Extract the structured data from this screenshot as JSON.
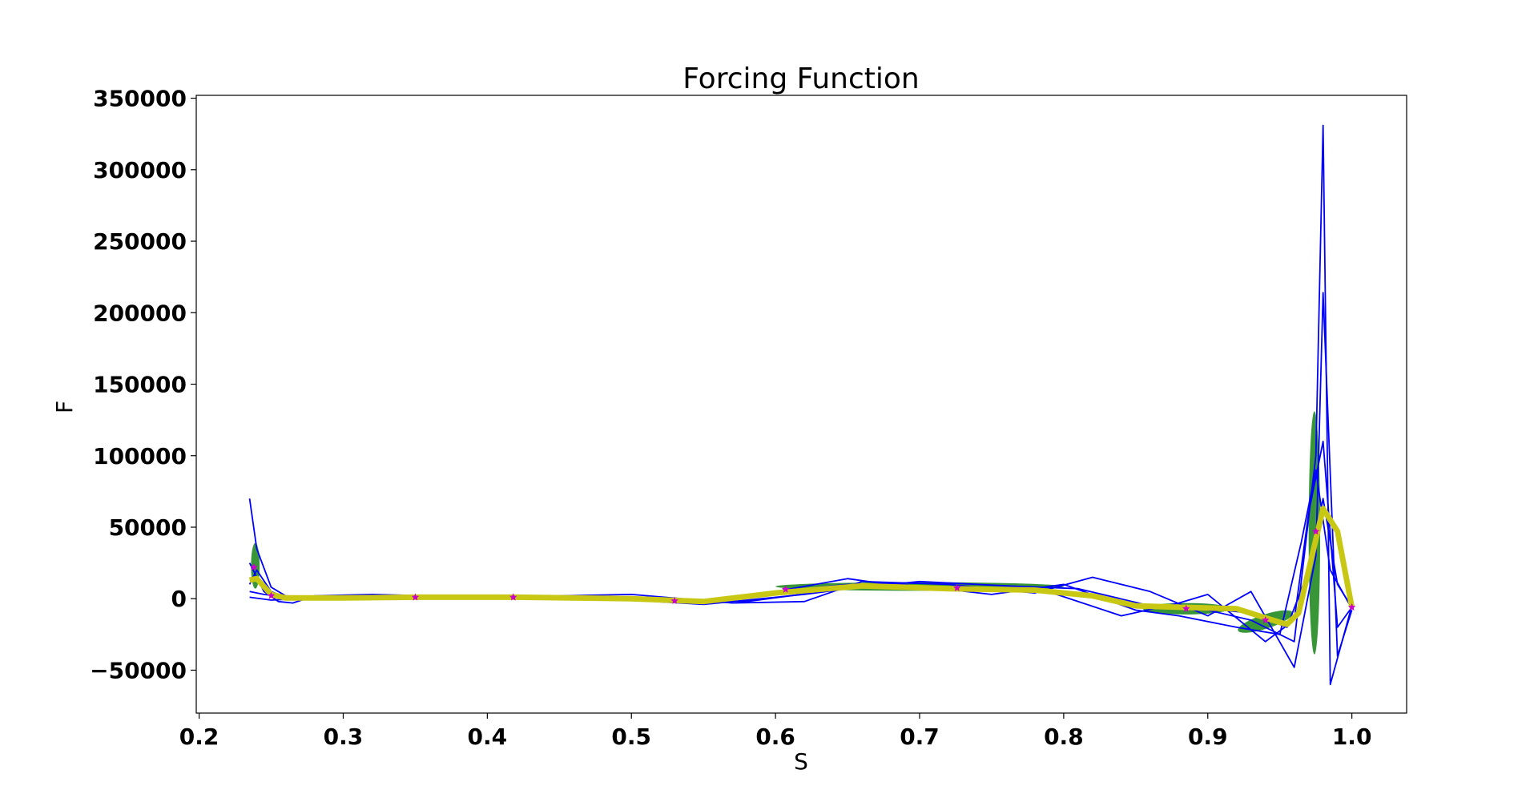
{
  "chart_data": {
    "type": "line",
    "title": "Forcing Function",
    "xlabel": "S",
    "ylabel": "F",
    "xlim": [
      0.198,
      1.038
    ],
    "ylim": [
      -80000,
      352000
    ],
    "xticks": [
      0.2,
      0.3,
      0.4,
      0.5,
      0.6,
      0.7,
      0.8,
      0.9,
      1.0
    ],
    "xtick_labels": [
      "0.2",
      "0.3",
      "0.4",
      "0.5",
      "0.6",
      "0.7",
      "0.8",
      "0.9",
      "1.0"
    ],
    "yticks": [
      -50000,
      0,
      50000,
      100000,
      150000,
      200000,
      250000,
      300000,
      350000
    ],
    "ytick_labels": [
      "−50000",
      "0",
      "50000",
      "100000",
      "150000",
      "200000",
      "250000",
      "300000",
      "350000"
    ],
    "grid": false,
    "colors": {
      "trajectories": "#0000ff",
      "mean": "#c8c814",
      "points": "#cc00cc",
      "ellipses": "#228b22"
    },
    "series": [
      {
        "style": "trajectory",
        "x": [
          0.235,
          0.24,
          0.25,
          0.26,
          0.28,
          0.32,
          0.4,
          0.5,
          0.55,
          0.6,
          0.65,
          0.7,
          0.75,
          0.8,
          0.85,
          0.9,
          0.93,
          0.96,
          0.975,
          0.98,
          0.985,
          1.0
        ],
        "y": [
          70000,
          35000,
          8000,
          2000,
          1000,
          800,
          500,
          0,
          -2000,
          5000,
          10000,
          8000,
          6000,
          5000,
          -5000,
          -8000,
          -15000,
          -30000,
          100000,
          331000,
          -60000,
          -5000
        ]
      },
      {
        "style": "trajectory",
        "x": [
          0.235,
          0.245,
          0.255,
          0.265,
          0.28,
          0.32,
          0.4,
          0.5,
          0.57,
          0.62,
          0.66,
          0.72,
          0.78,
          0.82,
          0.86,
          0.9,
          0.93,
          0.96,
          0.975,
          0.98,
          0.99,
          1.0
        ],
        "y": [
          25000,
          5000,
          -2000,
          -3000,
          2000,
          3000,
          1000,
          3000,
          -3000,
          -2000,
          12000,
          10000,
          4000,
          15000,
          5000,
          -12000,
          5000,
          -48000,
          30000,
          214000,
          -40000,
          -8000
        ]
      },
      {
        "style": "trajectory",
        "x": [
          0.235,
          0.24,
          0.25,
          0.26,
          0.27,
          0.3,
          0.35,
          0.45,
          0.55,
          0.6,
          0.65,
          0.7,
          0.78,
          0.84,
          0.88,
          0.9,
          0.94,
          0.96,
          0.97,
          0.98,
          0.99,
          1.0
        ],
        "y": [
          10000,
          20000,
          5000,
          1000,
          500,
          1500,
          1000,
          500,
          -3000,
          5000,
          14000,
          7000,
          8000,
          -12000,
          -3000,
          3000,
          -30000,
          -15000,
          60000,
          110000,
          -20000,
          -6000
        ]
      },
      {
        "style": "trajectory",
        "x": [
          0.235,
          0.245,
          0.26,
          0.3,
          0.4,
          0.5,
          0.55,
          0.62,
          0.68,
          0.75,
          0.8,
          0.85,
          0.88,
          0.92,
          0.95,
          0.965,
          0.975,
          0.985,
          1.0
        ],
        "y": [
          5000,
          3000,
          1000,
          800,
          600,
          -1000,
          -4000,
          3000,
          11000,
          3000,
          10000,
          -8000,
          -12000,
          -20000,
          -25000,
          40000,
          90000,
          20000,
          -7000
        ]
      },
      {
        "style": "trajectory",
        "x": [
          0.235,
          0.25,
          0.28,
          0.35,
          0.45,
          0.52,
          0.58,
          0.64,
          0.7,
          0.76,
          0.81,
          0.86,
          0.9,
          0.93,
          0.955,
          0.97,
          0.98,
          0.99,
          1.0
        ],
        "y": [
          1000,
          -1000,
          500,
          1000,
          1500,
          -500,
          -2000,
          6000,
          12000,
          9000,
          7000,
          -5000,
          -7000,
          -10000,
          -20000,
          20000,
          70000,
          10000,
          -6000
        ]
      },
      {
        "style": "mean",
        "x": [
          0.235,
          0.24,
          0.25,
          0.26,
          0.3,
          0.35,
          0.42,
          0.5,
          0.55,
          0.6,
          0.66,
          0.72,
          0.78,
          0.82,
          0.85,
          0.88,
          0.92,
          0.945,
          0.955,
          0.963,
          0.97,
          0.98,
          0.99,
          1.0
        ],
        "y": [
          13000,
          14000,
          3000,
          500,
          500,
          1000,
          1000,
          0,
          -2000,
          4000,
          9000,
          7000,
          6000,
          2000,
          -5000,
          -6000,
          -7000,
          -15000,
          -18000,
          -10000,
          20000,
          63000,
          47000,
          -6000
        ]
      }
    ],
    "points": {
      "x": [
        0.238,
        0.25,
        0.35,
        0.418,
        0.53,
        0.607,
        0.726,
        0.885,
        0.94,
        0.975,
        1.0
      ],
      "y": [
        22000,
        2000,
        1000,
        1000,
        -1500,
        6500,
        7500,
        -7000,
        -15000,
        47000,
        -6000
      ]
    },
    "ellipses": [
      {
        "cx": 0.239,
        "cy": 23000,
        "rx": 0.003,
        "ry": 16000,
        "angle": 0
      },
      {
        "cx": 0.7,
        "cy": 8500,
        "rx": 0.1,
        "ry": 3000,
        "angle": 0
      },
      {
        "cx": 0.885,
        "cy": -7000,
        "rx": 0.03,
        "ry": 4000,
        "angle": 0
      },
      {
        "cx": 0.94,
        "cy": -16000,
        "rx": 0.02,
        "ry": 5000,
        "angle": -18
      },
      {
        "cx": 0.974,
        "cy": 46000,
        "rx": 0.004,
        "ry": 85000,
        "angle": 0
      }
    ]
  }
}
